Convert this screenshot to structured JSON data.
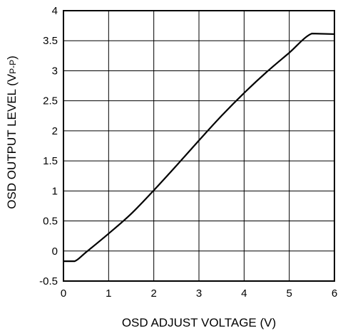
{
  "chart_data": {
    "type": "line",
    "xlabel": "OSD ADJUST VOLTAGE  (V)",
    "ylabel_main": "OSD OUTPUT LEVEL (V",
    "ylabel_sub": "P-P",
    "ylabel_close": ")",
    "xlim": [
      0,
      6
    ],
    "ylim": [
      -0.5,
      4
    ],
    "x_ticks": [
      "0",
      "1",
      "2",
      "3",
      "4",
      "5",
      "6"
    ],
    "y_ticks": [
      "-0.5",
      "0",
      "0.5",
      "1",
      "1.5",
      "2",
      "2.5",
      "3",
      "3.5",
      "4"
    ],
    "grid": true,
    "series": [
      {
        "x": [
          0,
          0.25,
          0.5,
          1.0,
          1.5,
          2.0,
          2.5,
          3.0,
          3.5,
          4.0,
          4.5,
          5.0,
          5.5,
          6.0
        ],
        "y": [
          -0.17,
          -0.17,
          -0.02,
          0.29,
          0.62,
          1.01,
          1.42,
          1.84,
          2.25,
          2.63,
          2.98,
          3.3,
          3.62,
          3.61
        ]
      }
    ]
  }
}
